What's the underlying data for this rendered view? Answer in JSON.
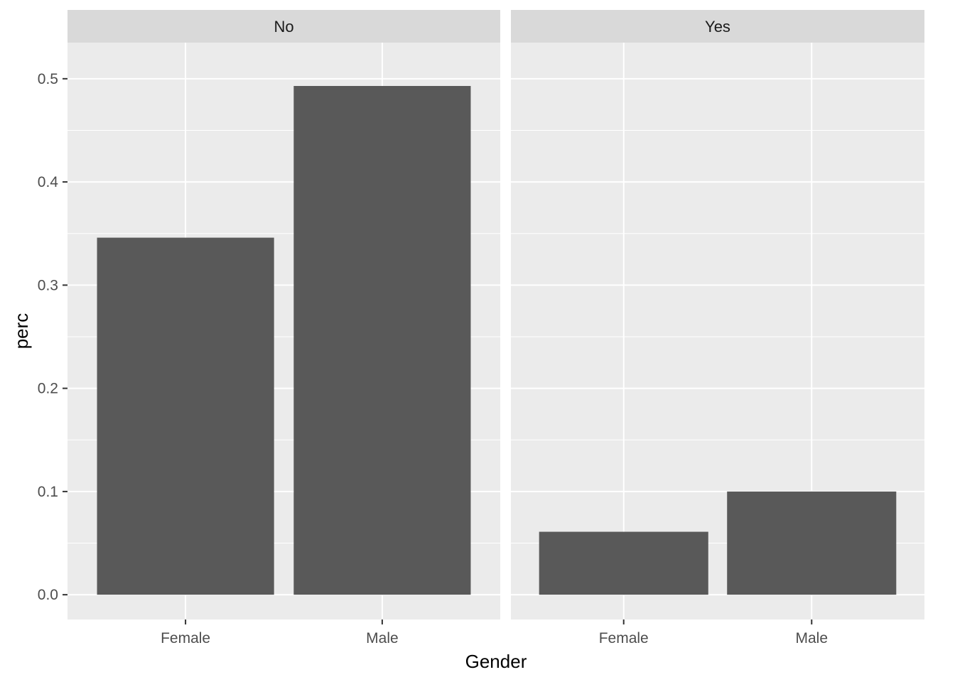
{
  "chart_data": {
    "type": "bar",
    "facet_variable_values": [
      "No",
      "Yes"
    ],
    "categories": [
      "Female",
      "Male"
    ],
    "facets": [
      {
        "label": "No",
        "values": [
          0.346,
          0.493
        ]
      },
      {
        "label": "Yes",
        "values": [
          0.061,
          0.1
        ]
      }
    ],
    "xlabel": "Gender",
    "ylabel": "perc",
    "ylim": [
      -0.024,
      0.535
    ],
    "yticks": [
      0.0,
      0.1,
      0.2,
      0.3,
      0.4,
      0.5
    ],
    "ytick_labels": [
      "0.0",
      "0.1",
      "0.2",
      "0.3",
      "0.4",
      "0.5"
    ],
    "grid": true,
    "legend": "none",
    "colors": {
      "bar": "#595959",
      "panel_background": "#ebebeb",
      "strip_background": "#d9d9d9",
      "grid": "#ffffff",
      "tick": "#333333"
    }
  }
}
